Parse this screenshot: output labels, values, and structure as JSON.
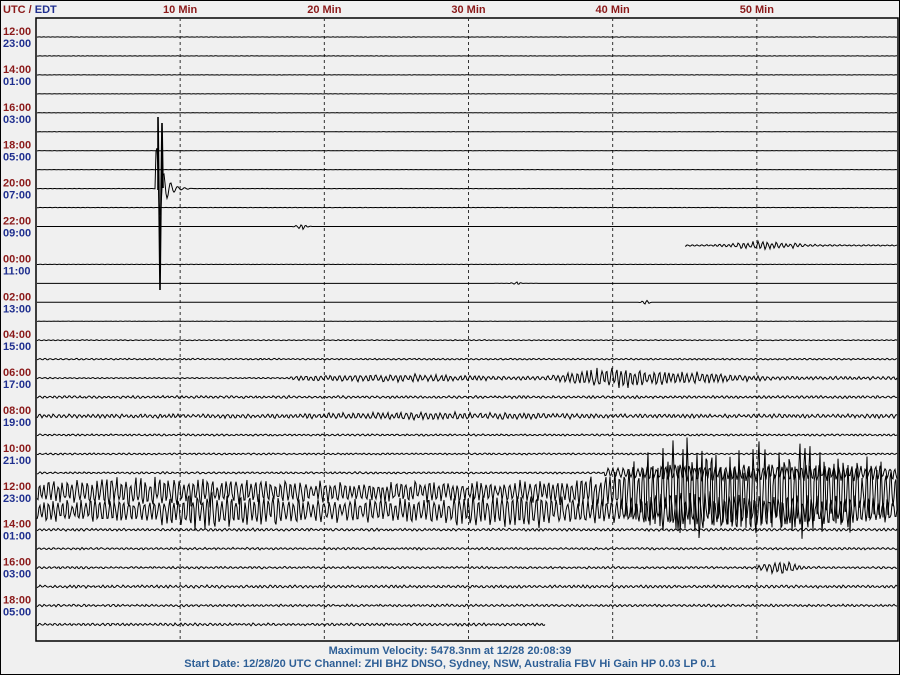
{
  "chart_data": {
    "type": "helicorder",
    "corner_label": {
      "utc": "UTC",
      "sep": " / ",
      "local": "EDT"
    },
    "x_ticks": [
      {
        "minute": 10,
        "label": "10 Min"
      },
      {
        "minute": 20,
        "label": "20 Min"
      },
      {
        "minute": 30,
        "label": "30 Min"
      },
      {
        "minute": 40,
        "label": "40 Min"
      },
      {
        "minute": 50,
        "label": "50 Min"
      }
    ],
    "xlim_minutes": [
      0,
      60
    ],
    "minutes_per_line": 60,
    "line_count": 32,
    "hour_labels": [
      {
        "utc": "12:00",
        "local": "23:00"
      },
      {
        "utc": "14:00",
        "local": "01:00"
      },
      {
        "utc": "16:00",
        "local": "03:00"
      },
      {
        "utc": "18:00",
        "local": "05:00"
      },
      {
        "utc": "20:00",
        "local": "07:00"
      },
      {
        "utc": "22:00",
        "local": "09:00"
      },
      {
        "utc": "00:00",
        "local": "11:00"
      },
      {
        "utc": "02:00",
        "local": "13:00"
      },
      {
        "utc": "04:00",
        "local": "15:00"
      },
      {
        "utc": "06:00",
        "local": "17:00"
      },
      {
        "utc": "08:00",
        "local": "19:00"
      },
      {
        "utc": "10:00",
        "local": "21:00"
      },
      {
        "utc": "12:00",
        "local": "23:00"
      },
      {
        "utc": "14:00",
        "local": "01:00"
      },
      {
        "utc": "16:00",
        "local": "03:00"
      },
      {
        "utc": "18:00",
        "local": "05:00"
      }
    ],
    "grid": "dashed vertical at 10-minute intervals",
    "colors": {
      "utc": "#8b1a1a",
      "local": "#1f2f8f",
      "trace": "#000000",
      "footer": "#2e5f96",
      "background": "#f0f0f0"
    }
  },
  "footer": {
    "max_velocity": "Maximum Velocity: 5478.3nm at 12/28 20:08:39",
    "info": "Start Date: 12/28/20 UTC Channel: ZHI  BHZ  DNSO, Sydney, NSW, Australia  FBV Hi Gain HP 0.03  LP 0.1"
  }
}
